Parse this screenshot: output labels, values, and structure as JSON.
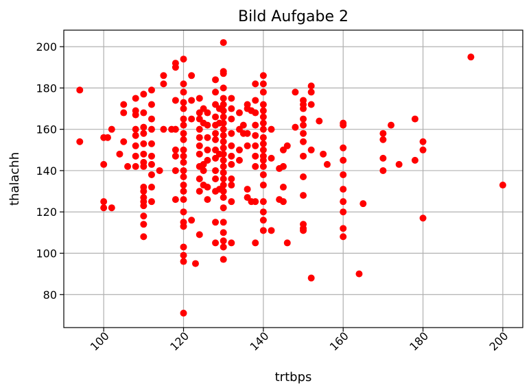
{
  "chart_data": {
    "type": "scatter",
    "title": "Bild Aufgabe 2",
    "xlabel": "trtbps",
    "ylabel": "thalachh",
    "xlim": [
      90,
      205
    ],
    "ylim": [
      64,
      208
    ],
    "xticks": [
      100,
      120,
      140,
      160,
      180,
      200
    ],
    "yticks": [
      80,
      100,
      120,
      140,
      160,
      180,
      200
    ],
    "grid": true,
    "marker_color": "#ff0000",
    "points": [
      [
        94,
        179
      ],
      [
        94,
        154
      ],
      [
        100,
        156
      ],
      [
        100,
        143
      ],
      [
        100,
        125
      ],
      [
        100,
        122
      ],
      [
        101,
        156
      ],
      [
        102,
        160
      ],
      [
        102,
        122
      ],
      [
        104,
        148
      ],
      [
        105,
        172
      ],
      [
        105,
        168
      ],
      [
        105,
        154
      ],
      [
        106,
        142
      ],
      [
        108,
        175
      ],
      [
        108,
        169
      ],
      [
        108,
        167
      ],
      [
        108,
        160
      ],
      [
        108,
        157
      ],
      [
        108,
        152
      ],
      [
        108,
        147
      ],
      [
        108,
        142
      ],
      [
        110,
        177
      ],
      [
        110,
        168
      ],
      [
        110,
        161
      ],
      [
        110,
        158
      ],
      [
        110,
        153
      ],
      [
        110,
        148
      ],
      [
        110,
        144
      ],
      [
        110,
        142
      ],
      [
        110,
        132
      ],
      [
        110,
        130
      ],
      [
        110,
        127
      ],
      [
        110,
        125
      ],
      [
        110,
        123
      ],
      [
        110,
        118
      ],
      [
        110,
        114
      ],
      [
        110,
        108
      ],
      [
        112,
        179
      ],
      [
        112,
        172
      ],
      [
        112,
        165
      ],
      [
        112,
        160
      ],
      [
        112,
        153
      ],
      [
        112,
        147
      ],
      [
        112,
        143
      ],
      [
        112,
        138
      ],
      [
        112,
        132
      ],
      [
        112,
        125
      ],
      [
        114,
        140
      ],
      [
        115,
        186
      ],
      [
        115,
        182
      ],
      [
        115,
        160
      ],
      [
        117,
        160
      ],
      [
        118,
        192
      ],
      [
        118,
        190
      ],
      [
        118,
        174
      ],
      [
        118,
        160
      ],
      [
        118,
        150
      ],
      [
        118,
        147
      ],
      [
        118,
        140
      ],
      [
        118,
        126
      ],
      [
        120,
        194
      ],
      [
        120,
        182
      ],
      [
        120,
        178
      ],
      [
        120,
        173
      ],
      [
        120,
        170
      ],
      [
        120,
        165
      ],
      [
        120,
        162
      ],
      [
        120,
        158
      ],
      [
        120,
        155
      ],
      [
        120,
        150
      ],
      [
        120,
        147
      ],
      [
        120,
        144
      ],
      [
        120,
        140
      ],
      [
        120,
        137
      ],
      [
        120,
        133
      ],
      [
        120,
        130
      ],
      [
        120,
        126
      ],
      [
        120,
        120
      ],
      [
        120,
        115
      ],
      [
        120,
        113
      ],
      [
        120,
        103
      ],
      [
        120,
        99
      ],
      [
        120,
        96
      ],
      [
        120,
        71
      ],
      [
        122,
        186
      ],
      [
        122,
        174
      ],
      [
        122,
        165
      ],
      [
        122,
        116
      ],
      [
        123,
        95
      ],
      [
        124,
        175
      ],
      [
        124,
        168
      ],
      [
        124,
        165
      ],
      [
        124,
        160
      ],
      [
        124,
        156
      ],
      [
        124,
        152
      ],
      [
        124,
        148
      ],
      [
        124,
        142
      ],
      [
        124,
        136
      ],
      [
        124,
        130
      ],
      [
        124,
        109
      ],
      [
        125,
        170
      ],
      [
        125,
        163
      ],
      [
        125,
        143
      ],
      [
        125,
        140
      ],
      [
        125,
        133
      ],
      [
        126,
        168
      ],
      [
        126,
        162
      ],
      [
        126,
        156
      ],
      [
        126,
        150
      ],
      [
        126,
        145
      ],
      [
        126,
        132
      ],
      [
        126,
        126
      ],
      [
        128,
        184
      ],
      [
        128,
        178
      ],
      [
        128,
        172
      ],
      [
        128,
        166
      ],
      [
        128,
        162
      ],
      [
        128,
        158
      ],
      [
        128,
        155
      ],
      [
        128,
        150
      ],
      [
        128,
        146
      ],
      [
        128,
        140
      ],
      [
        128,
        136
      ],
      [
        128,
        130
      ],
      [
        128,
        115
      ],
      [
        128,
        105
      ],
      [
        129,
        170
      ],
      [
        129,
        163
      ],
      [
        129,
        148
      ],
      [
        129,
        131
      ],
      [
        130,
        202
      ],
      [
        130,
        188
      ],
      [
        130,
        187
      ],
      [
        130,
        180
      ],
      [
        130,
        175
      ],
      [
        130,
        172
      ],
      [
        130,
        169
      ],
      [
        130,
        166
      ],
      [
        130,
        163
      ],
      [
        130,
        160
      ],
      [
        130,
        157
      ],
      [
        130,
        154
      ],
      [
        130,
        151
      ],
      [
        130,
        148
      ],
      [
        130,
        145
      ],
      [
        130,
        142
      ],
      [
        130,
        139
      ],
      [
        130,
        136
      ],
      [
        130,
        133
      ],
      [
        130,
        130
      ],
      [
        130,
        127
      ],
      [
        130,
        122
      ],
      [
        130,
        115
      ],
      [
        130,
        110
      ],
      [
        130,
        106
      ],
      [
        130,
        103
      ],
      [
        130,
        97
      ],
      [
        132,
        175
      ],
      [
        132,
        170
      ],
      [
        132,
        165
      ],
      [
        132,
        158
      ],
      [
        132,
        152
      ],
      [
        132,
        147
      ],
      [
        132,
        143
      ],
      [
        132,
        136
      ],
      [
        132,
        133
      ],
      [
        132,
        125
      ],
      [
        132,
        105
      ],
      [
        134,
        168
      ],
      [
        134,
        160
      ],
      [
        134,
        150
      ],
      [
        134,
        145
      ],
      [
        135,
        162
      ],
      [
        135,
        158
      ],
      [
        136,
        172
      ],
      [
        136,
        170
      ],
      [
        136,
        158
      ],
      [
        136,
        152
      ],
      [
        136,
        131
      ],
      [
        136,
        127
      ],
      [
        137,
        169
      ],
      [
        137,
        125
      ],
      [
        138,
        182
      ],
      [
        138,
        174
      ],
      [
        138,
        168
      ],
      [
        138,
        162
      ],
      [
        138,
        157
      ],
      [
        138,
        152
      ],
      [
        138,
        147
      ],
      [
        138,
        142
      ],
      [
        138,
        125
      ],
      [
        138,
        105
      ],
      [
        140,
        186
      ],
      [
        140,
        182
      ],
      [
        140,
        178
      ],
      [
        140,
        172
      ],
      [
        140,
        169
      ],
      [
        140,
        166
      ],
      [
        140,
        163
      ],
      [
        140,
        160
      ],
      [
        140,
        156
      ],
      [
        140,
        153
      ],
      [
        140,
        150
      ],
      [
        140,
        147
      ],
      [
        140,
        145
      ],
      [
        140,
        142
      ],
      [
        140,
        138
      ],
      [
        140,
        133
      ],
      [
        140,
        125
      ],
      [
        140,
        120
      ],
      [
        140,
        116
      ],
      [
        140,
        111
      ],
      [
        142,
        160
      ],
      [
        142,
        146
      ],
      [
        142,
        111
      ],
      [
        144,
        141
      ],
      [
        144,
        126
      ],
      [
        145,
        150
      ],
      [
        145,
        142
      ],
      [
        145,
        132
      ],
      [
        145,
        125
      ],
      [
        146,
        152
      ],
      [
        146,
        105
      ],
      [
        148,
        178
      ],
      [
        148,
        161
      ],
      [
        150,
        174
      ],
      [
        150,
        172
      ],
      [
        150,
        170
      ],
      [
        150,
        165
      ],
      [
        150,
        162
      ],
      [
        150,
        158
      ],
      [
        150,
        154
      ],
      [
        150,
        147
      ],
      [
        150,
        137
      ],
      [
        150,
        128
      ],
      [
        150,
        114
      ],
      [
        150,
        112
      ],
      [
        150,
        111
      ],
      [
        152,
        181
      ],
      [
        152,
        178
      ],
      [
        152,
        172
      ],
      [
        152,
        150
      ],
      [
        152,
        88
      ],
      [
        154,
        164
      ],
      [
        155,
        148
      ],
      [
        156,
        143
      ],
      [
        160,
        163
      ],
      [
        160,
        162
      ],
      [
        160,
        151
      ],
      [
        160,
        145
      ],
      [
        160,
        138
      ],
      [
        160,
        131
      ],
      [
        160,
        125
      ],
      [
        160,
        120
      ],
      [
        160,
        112
      ],
      [
        160,
        108
      ],
      [
        164,
        90
      ],
      [
        165,
        124
      ],
      [
        170,
        158
      ],
      [
        170,
        155
      ],
      [
        170,
        146
      ],
      [
        170,
        140
      ],
      [
        172,
        162
      ],
      [
        174,
        143
      ],
      [
        178,
        165
      ],
      [
        178,
        145
      ],
      [
        180,
        154
      ],
      [
        180,
        150
      ],
      [
        180,
        117
      ],
      [
        192,
        195
      ],
      [
        200,
        133
      ]
    ]
  }
}
